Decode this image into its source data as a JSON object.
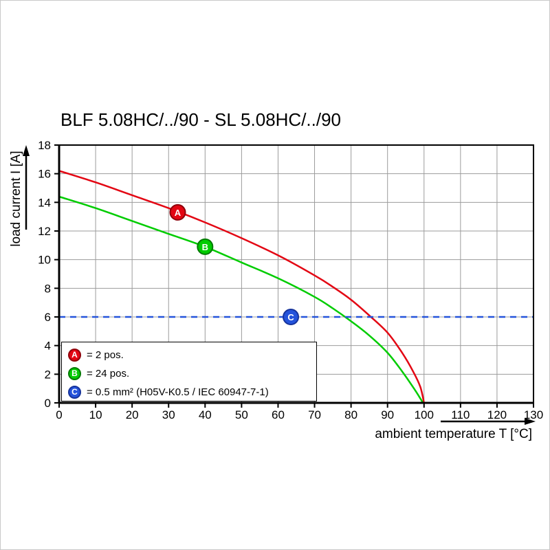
{
  "chart": {
    "title": "BLF 5.08HC/../90 - SL 5.08HC/../90",
    "x_axis_label": "ambient temperature T [°C]",
    "y_axis_label": "load current I [A]"
  },
  "chart_data": {
    "type": "line",
    "title": "BLF 5.08HC/../90 - SL 5.08HC/../90",
    "xlabel": "ambient temperature T [°C]",
    "ylabel": "load current I [A]",
    "xlim": [
      0,
      130
    ],
    "ylim": [
      0,
      18
    ],
    "x_ticks": [
      0,
      10,
      20,
      30,
      40,
      50,
      60,
      70,
      80,
      90,
      100,
      110,
      120,
      130
    ],
    "y_ticks": [
      0,
      2,
      4,
      6,
      8,
      10,
      12,
      14,
      16,
      18
    ],
    "grid": true,
    "grid_color": "#9b9b9b",
    "legend_position": "bottom-left",
    "series": [
      {
        "name": "A",
        "label": "= 2 pos.",
        "color": "#e30613",
        "edge_color": "#8f000a",
        "style": "solid",
        "marker": {
          "x": 32.5,
          "y": 13.3
        },
        "points": [
          [
            0,
            16.2
          ],
          [
            10,
            15.4
          ],
          [
            20,
            14.5
          ],
          [
            30,
            13.6
          ],
          [
            40,
            12.6
          ],
          [
            50,
            11.5
          ],
          [
            60,
            10.3
          ],
          [
            70,
            8.9
          ],
          [
            75,
            8.1
          ],
          [
            80,
            7.2
          ],
          [
            85,
            6.1
          ],
          [
            90,
            4.9
          ],
          [
            94,
            3.5
          ],
          [
            97,
            2.2
          ],
          [
            99,
            1.1
          ],
          [
            100,
            0
          ]
        ]
      },
      {
        "name": "B",
        "label": "= 24 pos.",
        "color": "#00cc00",
        "edge_color": "#007a00",
        "style": "solid",
        "marker": {
          "x": 40,
          "y": 10.9
        },
        "points": [
          [
            0,
            14.4
          ],
          [
            10,
            13.6
          ],
          [
            20,
            12.7
          ],
          [
            30,
            11.8
          ],
          [
            40,
            10.9
          ],
          [
            50,
            9.8
          ],
          [
            60,
            8.7
          ],
          [
            70,
            7.4
          ],
          [
            75,
            6.6
          ],
          [
            80,
            5.7
          ],
          [
            85,
            4.7
          ],
          [
            90,
            3.5
          ],
          [
            94,
            2.2
          ],
          [
            97,
            1.1
          ],
          [
            99,
            0.3
          ],
          [
            99.7,
            0
          ]
        ]
      },
      {
        "name": "C",
        "label": "= 0.5 mm² (H05V-K0.5 / IEC 60947-7-1)",
        "color": "#2453db",
        "edge_color": "#16339b",
        "style": "dashed",
        "marker": {
          "x": 63.5,
          "y": 6
        },
        "points": [
          [
            0,
            6
          ],
          [
            130,
            6
          ]
        ]
      }
    ]
  }
}
